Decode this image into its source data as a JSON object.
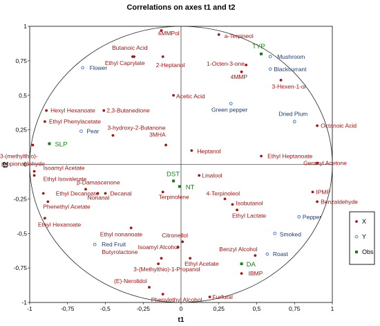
{
  "chart_data": {
    "type": "scatter",
    "title": "Correlations on axes t1 and t2",
    "xlabel": "t1",
    "ylabel": "t2",
    "xlim": [
      -1,
      1
    ],
    "ylim": [
      -1,
      1
    ],
    "x_ticks": [
      "-1",
      "-0,75",
      "-0,5",
      "-0,25",
      "0",
      "0,25",
      "0,5",
      "0,75",
      "1"
    ],
    "y_ticks": [
      "-1",
      "-0,75",
      "-0,5",
      "-0,25",
      "0",
      "0,25",
      "0,5",
      "0,75",
      "1"
    ],
    "grid": false,
    "unit_circle": true,
    "legend": {
      "placement": "right",
      "entries": [
        "X",
        "Y",
        "Obs"
      ]
    },
    "colors": {
      "X": "#9b1c1c",
      "Y": "#3a6fc4",
      "Obs": "#1e7a1e"
    },
    "series": [
      {
        "name": "X",
        "points": [
          {
            "label": "4MMPol",
            "x": -0.13,
            "y": 0.97
          },
          {
            "label": "a-Terpineol",
            "x": 0.25,
            "y": 0.94
          },
          {
            "label": "Butanoic Acid",
            "x": -0.31,
            "y": 0.78
          },
          {
            "label": "Ethyl Caprylate",
            "x": -0.32,
            "y": 0.78
          },
          {
            "label": "2-Heptanol",
            "x": -0.12,
            "y": 0.78
          },
          {
            "label": "1-Octen-3-one",
            "x": 0.43,
            "y": 0.72
          },
          {
            "label": "4MMP",
            "x": 0.4,
            "y": 0.67
          },
          {
            "label": "3-Hexen-1-ol",
            "x": 0.66,
            "y": 0.61
          },
          {
            "label": "Acetic Acid",
            "x": -0.05,
            "y": 0.5
          },
          {
            "label": "Hexyl Hexanoate",
            "x": -0.89,
            "y": 0.39
          },
          {
            "label": "2,3-Butanedione",
            "x": -0.51,
            "y": 0.39
          },
          {
            "label": "Ethyl Phenylacetate",
            "x": -0.9,
            "y": 0.31
          },
          {
            "label": "Octanoic Acid",
            "x": 0.9,
            "y": 0.28
          },
          {
            "label": "3-hydroxy-2-Butanone",
            "x": -0.45,
            "y": 0.21
          },
          {
            "label": "3-(methylthio)-propionaldehyde",
            "x": -0.98,
            "y": 0.14
          },
          {
            "label": "3MHA",
            "x": -0.1,
            "y": 0.14
          },
          {
            "label": "Heptanol",
            "x": 0.07,
            "y": 0.1
          },
          {
            "label": "Ethyl Heptanoate",
            "x": 0.53,
            "y": 0.06
          },
          {
            "label": "Geranyl Acetone",
            "x": 0.9,
            "y": 0.01
          },
          {
            "label": "Isoamyl Acetate",
            "x": -0.97,
            "y": -0.05
          },
          {
            "label": "Ethyl Isovalerate",
            "x": -0.97,
            "y": -0.08
          },
          {
            "label": "Linalool",
            "x": 0.12,
            "y": -0.08
          },
          {
            "label": "β-Damascenone",
            "x": -0.63,
            "y": -0.18
          },
          {
            "label": "Ethyl Decanoate",
            "x": -0.91,
            "y": -0.21
          },
          {
            "label": "Decanal",
            "x": -0.5,
            "y": -0.21
          },
          {
            "label": "Nonanal",
            "x": -0.55,
            "y": -0.21
          },
          {
            "label": "Terpinolene",
            "x": -0.12,
            "y": -0.2
          },
          {
            "label": "IPMP",
            "x": 0.87,
            "y": -0.2
          },
          {
            "label": "4-Terpinoleol",
            "x": 0.29,
            "y": -0.25
          },
          {
            "label": "Isobutanol",
            "x": 0.34,
            "y": -0.29
          },
          {
            "label": "Benzaldehyde",
            "x": 0.9,
            "y": -0.27
          },
          {
            "label": "Phenethyl Acetate",
            "x": -0.88,
            "y": -0.27
          },
          {
            "label": "Ethyl Lactate",
            "x": 0.37,
            "y": -0.33
          },
          {
            "label": "Ethyl Hexanoate",
            "x": -0.9,
            "y": -0.39
          },
          {
            "label": "Ethyl nonanoate",
            "x": -0.33,
            "y": -0.46
          },
          {
            "label": "Citronellol",
            "x": 0.01,
            "y": -0.56
          },
          {
            "label": "Isoamyl Alcohol",
            "x": -0.02,
            "y": -0.6
          },
          {
            "label": "Butyrolactone",
            "x": -0.13,
            "y": -0.68
          },
          {
            "label": "Benzyl Alcohol",
            "x": 0.49,
            "y": -0.66
          },
          {
            "label": "Ethyl Acetate",
            "x": 0.06,
            "y": -0.68
          },
          {
            "label": "3-(Methylthio)-1-Propanol",
            "x": -0.15,
            "y": -0.72
          },
          {
            "label": "IBMP",
            "x": 0.4,
            "y": -0.79
          },
          {
            "label": "(E)-Nerolidol",
            "x": -0.21,
            "y": -0.89
          },
          {
            "label": "Phenylethyl Alcohol",
            "x": -0.12,
            "y": -0.94
          },
          {
            "label": "Furfural",
            "x": 0.19,
            "y": -0.96
          }
        ]
      },
      {
        "name": "Y",
        "points": [
          {
            "label": "Flower",
            "x": -0.65,
            "y": 0.7
          },
          {
            "label": "Mushroom",
            "x": 0.59,
            "y": 0.78
          },
          {
            "label": "Blackcurrant",
            "x": 0.59,
            "y": 0.69
          },
          {
            "label": "Green pepper",
            "x": 0.33,
            "y": 0.44
          },
          {
            "label": "Dried Plum",
            "x": 0.75,
            "y": 0.31
          },
          {
            "label": "Pear",
            "x": -0.66,
            "y": 0.24
          },
          {
            "label": "Pepper",
            "x": 0.78,
            "y": -0.38
          },
          {
            "label": "Smoked",
            "x": 0.62,
            "y": -0.5
          },
          {
            "label": "Red Fruit",
            "x": -0.57,
            "y": -0.58
          },
          {
            "label": "Roast",
            "x": 0.57,
            "y": -0.65
          }
        ]
      },
      {
        "name": "Obs",
        "points": [
          {
            "label": "TYP",
            "x": 0.53,
            "y": 0.8
          },
          {
            "label": "SLP",
            "x": -0.87,
            "y": 0.15
          },
          {
            "label": "DST",
            "x": -0.05,
            "y": -0.12
          },
          {
            "label": "NT",
            "x": -0.01,
            "y": -0.16
          },
          {
            "label": "DA",
            "x": 0.4,
            "y": -0.72
          }
        ]
      }
    ]
  }
}
